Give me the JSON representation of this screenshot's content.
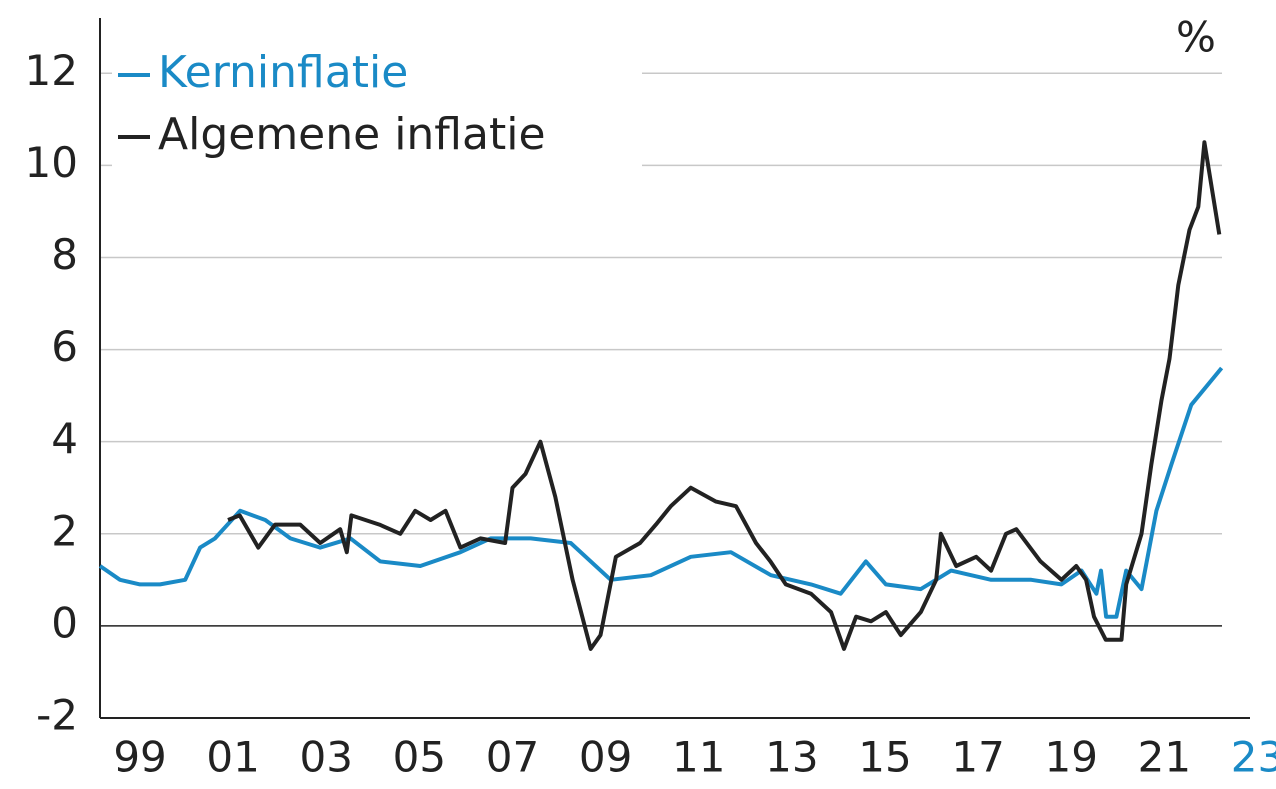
{
  "chart_data": {
    "type": "line",
    "y_unit": "%",
    "xlim": [
      1999,
      2023.7
    ],
    "ylim": [
      -2,
      13.2
    ],
    "xticks": [
      {
        "value": 1999,
        "label": "99"
      },
      {
        "value": 2001,
        "label": "01"
      },
      {
        "value": 2003,
        "label": "03"
      },
      {
        "value": 2005,
        "label": "05"
      },
      {
        "value": 2007,
        "label": "07"
      },
      {
        "value": 2009,
        "label": "09"
      },
      {
        "value": 2011,
        "label": "11"
      },
      {
        "value": 2013,
        "label": "13"
      },
      {
        "value": 2015,
        "label": "15"
      },
      {
        "value": 2017,
        "label": "17"
      },
      {
        "value": 2019,
        "label": "19"
      },
      {
        "value": 2021,
        "label": "21"
      },
      {
        "value": 2023,
        "label": "23"
      }
    ],
    "yticks": [
      -2,
      0,
      2,
      4,
      6,
      8,
      10,
      12
    ],
    "grid": true,
    "legend": "top-left",
    "series": [
      {
        "name": "Kerninflatie",
        "color": "#1a8ac6",
        "x": [
          1999.0,
          1999.43,
          1999.86,
          2000.29,
          2000.83,
          2001.15,
          2001.47,
          2002.01,
          2002.55,
          2003.09,
          2003.73,
          2004.38,
          2005.02,
          2005.88,
          2006.74,
          2007.39,
          2008.25,
          2009.11,
          2009.97,
          2010.83,
          2011.69,
          2012.55,
          2013.41,
          2014.27,
          2014.91,
          2015.45,
          2015.88,
          2016.63,
          2017.28,
          2018.14,
          2019.0,
          2019.65,
          2020.08,
          2020.4,
          2020.5,
          2020.61,
          2020.83,
          2021.04,
          2021.37,
          2021.69,
          2022.01,
          2022.44,
          2023.09
        ],
        "values": [
          1.3,
          1.0,
          0.9,
          0.9,
          1.0,
          1.7,
          1.9,
          2.5,
          2.3,
          1.9,
          1.7,
          1.9,
          1.4,
          1.3,
          1.6,
          1.9,
          1.9,
          1.8,
          1.0,
          1.1,
          1.5,
          1.6,
          1.1,
          0.9,
          0.7,
          1.4,
          0.9,
          0.8,
          1.2,
          1.0,
          1.0,
          0.9,
          1.2,
          0.7,
          1.2,
          0.2,
          0.2,
          1.2,
          0.8,
          2.5,
          3.5,
          4.8,
          5.6
        ]
      },
      {
        "name": "Algemene inflatie",
        "color": "#222222",
        "x": [
          2001.75,
          2002.0,
          2002.4,
          2002.76,
          2003.3,
          2003.73,
          2004.16,
          2004.3,
          2004.4,
          2005.0,
          2005.45,
          2005.77,
          2006.1,
          2006.42,
          2006.74,
          2007.17,
          2007.7,
          2007.86,
          2008.14,
          2008.46,
          2008.78,
          2009.15,
          2009.54,
          2009.75,
          2010.08,
          2010.6,
          2010.94,
          2011.26,
          2011.69,
          2012.23,
          2012.66,
          2013.09,
          2013.4,
          2013.73,
          2014.27,
          2014.7,
          2014.98,
          2015.24,
          2015.56,
          2015.88,
          2016.2,
          2016.63,
          2016.96,
          2017.06,
          2017.39,
          2017.82,
          2018.14,
          2018.46,
          2018.68,
          2019.2,
          2019.65,
          2019.97,
          2020.18,
          2020.35,
          2020.6,
          2020.94,
          2021.04,
          2021.37,
          2021.58,
          2021.8,
          2021.97,
          2022.16,
          2022.4,
          2022.59,
          2022.72,
          2023.04
        ],
        "values": [
          2.3,
          2.4,
          1.7,
          2.2,
          2.2,
          1.8,
          2.1,
          1.6,
          2.4,
          2.2,
          2.0,
          2.5,
          2.3,
          2.5,
          1.7,
          1.9,
          1.8,
          3.0,
          3.3,
          4.0,
          2.8,
          1.0,
          -0.5,
          -0.2,
          1.5,
          1.8,
          2.2,
          2.6,
          3.0,
          2.7,
          2.6,
          1.8,
          1.4,
          0.9,
          0.7,
          0.3,
          -0.5,
          0.2,
          0.1,
          0.3,
          -0.2,
          0.3,
          1.0,
          2.0,
          1.3,
          1.5,
          1.2,
          2.0,
          2.1,
          1.4,
          1.0,
          1.3,
          1.0,
          0.2,
          -0.3,
          -0.3,
          0.9,
          2.0,
          3.5,
          4.9,
          5.8,
          7.4,
          8.6,
          9.1,
          10.5,
          8.5
        ]
      }
    ]
  }
}
